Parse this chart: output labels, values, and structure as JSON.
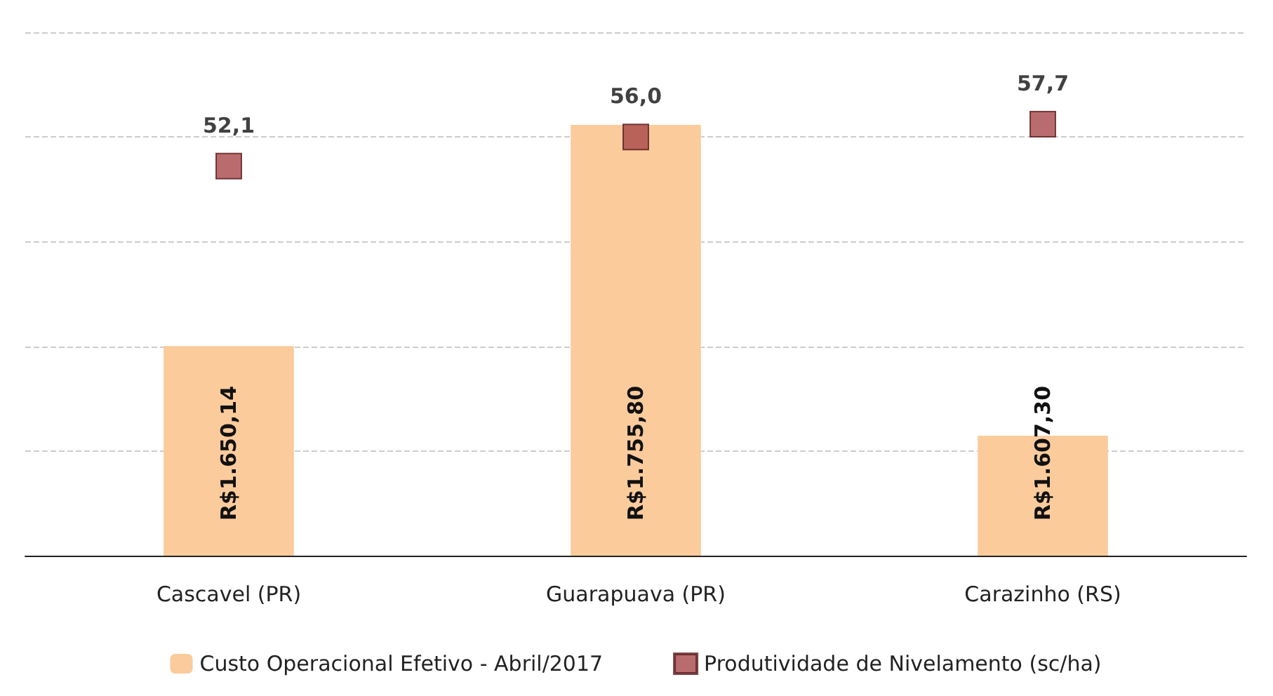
{
  "chart_data": {
    "type": "bar",
    "categories": [
      "Cascavel (PR)",
      "Guarapuava (PR)",
      "Carazinho (RS)"
    ],
    "series": [
      {
        "name": "Custo Operacional Efetivo - Abril/2017",
        "color": "#fbcb9c",
        "values": [
          1650.14,
          1755.8,
          1607.3
        ],
        "value_labels": [
          "R$1.650,14",
          "R$1.755,80",
          "R$1.607,30"
        ]
      },
      {
        "name": "Produtividade de Nivelamento (sc/ha)",
        "type": "scatter",
        "axis": "y2",
        "color": "#a8474a",
        "values": [
          52.1,
          56.0,
          57.7
        ],
        "value_labels": [
          "52,1",
          "56,0",
          "57,7"
        ]
      }
    ],
    "ylim": [
      1550,
      1800
    ],
    "yticks": [
      {
        "value": 1550,
        "label": null
      },
      {
        "value": 1600,
        "label": null
      },
      {
        "value": 1650,
        "label": null
      },
      {
        "value": 1700,
        "label": null
      },
      {
        "value": 1750,
        "label": null
      },
      {
        "value": 1800,
        "label": null
      }
    ],
    "y2lim": [
      0,
      70
    ],
    "tick_labels": "x",
    "grid": "y",
    "legend": "bottom",
    "marker": "square"
  }
}
